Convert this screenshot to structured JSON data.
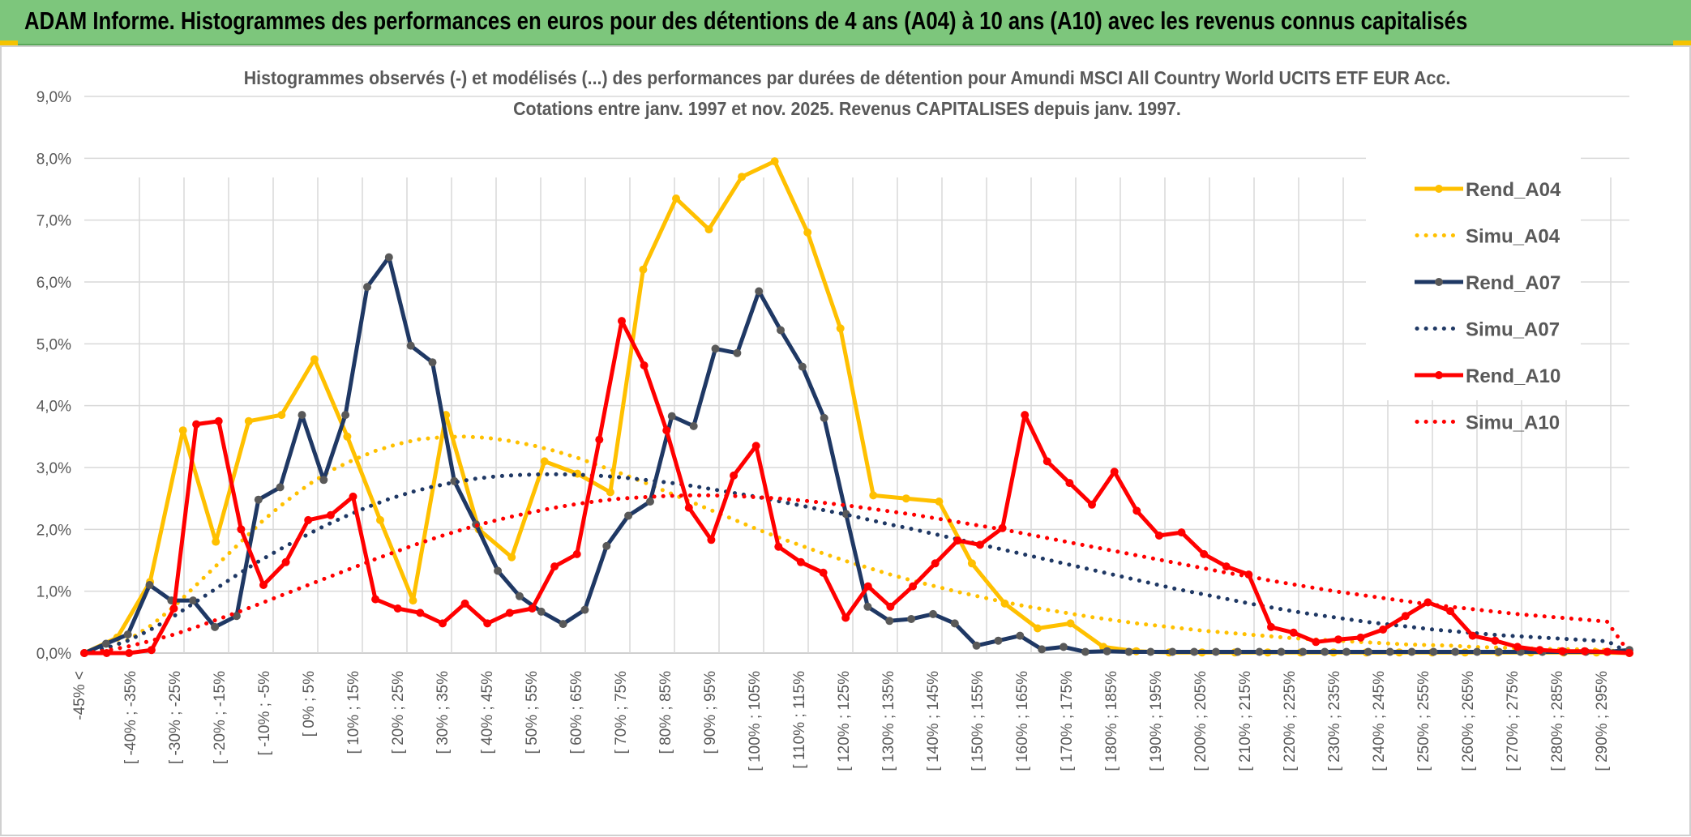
{
  "banner": {
    "title": "ADAM Informe. Histogrammes des performances en euros pour des détentions de 4 ans (A04) à 10 ans (A10) avec les revenus connus capitalisés"
  },
  "colors": {
    "banner_bg": "#7dc67c",
    "A04": "#ffc000",
    "A07": "#1f3864",
    "A10": "#ff0000",
    "grid": "#d9d9d9"
  },
  "chart_data": {
    "type": "line",
    "title": "Histogrammes observés (-) et modélisés (...) des performances par durées de détention pour Amundi MSCI All Country World UCITS ETF EUR Acc.",
    "subtitle": "Cotations entre janv. 1997 et nov. 2025. Revenus CAPITALISES depuis janv. 1997.",
    "ylim": [
      0,
      9
    ],
    "yticks": [
      "0,0%",
      "1,0%",
      "2,0%",
      "3,0%",
      "4,0%",
      "5,0%",
      "6,0%",
      "7,0%",
      "8,0%",
      "9,0%"
    ],
    "grid": true,
    "legend_position": "right",
    "x_labels": [
      "-45% <",
      "[ -40% ; -35%",
      "[ -30% ; -25%",
      "[ -20% ; -15%",
      "[ -10% ; -5%",
      "[ 0% ; 5%",
      "[ 10% ; 15%",
      "[ 20% ; 25%",
      "[ 30% ; 35%",
      "[ 40% ; 45%",
      "[ 50% ; 55%",
      "[ 60% ; 65%",
      "[ 70% ; 75%",
      "[ 80% ; 85%",
      "[ 90% ; 95%",
      "[ 100% ; 105%",
      "[ 110% ; 115%",
      "[ 120% ; 125%",
      "[ 130% ; 135%",
      "[ 140% ; 145%",
      "[ 150% ; 155%",
      "[ 160% ; 165%",
      "[ 170% ; 175%",
      "[ 180% ; 185%",
      "[ 190% ; 195%",
      "[ 200% ; 205%",
      "[ 210% ; 215%",
      "[ 220% ; 225%",
      "[ 230% ; 235%",
      "[ 240% ; 245%",
      "[ 250% ; 255%",
      "[ 260% ; 265%",
      "[ 270% ; 275%",
      "[ 280% ; 285%",
      "[ 290% ; 295%"
    ],
    "series": [
      {
        "name": "Rend_A04",
        "key": "A04",
        "style": "solid",
        "values": [
          0.0,
          0.25,
          1.15,
          3.6,
          1.8,
          3.75,
          3.85,
          4.75,
          3.5,
          2.15,
          0.85,
          3.85,
          2.0,
          1.55,
          3.1,
          2.9,
          2.6,
          6.2,
          7.35,
          6.85,
          7.7,
          7.95,
          6.8,
          5.25,
          2.55,
          2.5,
          2.45,
          1.45,
          0.8,
          0.4,
          0.48,
          0.1,
          0.03,
          0.01,
          0.01,
          0.01,
          0.01,
          0.01,
          0.01,
          0.01,
          0.01,
          0.01,
          0.01,
          0.01,
          0.01,
          0.01,
          0.01,
          0.0
        ]
      },
      {
        "name": "Simu_A04",
        "key": "A04",
        "style": "dotted",
        "values": [
          0.0,
          0.07,
          0.22,
          0.45,
          0.75,
          1.1,
          1.45,
          1.8,
          2.15,
          2.45,
          2.72,
          2.95,
          3.12,
          3.27,
          3.38,
          3.46,
          3.49,
          3.5,
          3.48,
          3.43,
          3.36,
          3.27,
          3.16,
          3.03,
          2.9,
          2.76,
          2.61,
          2.46,
          2.31,
          2.16,
          2.01,
          1.87,
          1.74,
          1.61,
          1.49,
          1.38,
          1.27,
          1.17,
          1.08,
          0.99,
          0.91,
          0.83,
          0.76,
          0.7,
          0.64,
          0.58,
          0.53,
          0.48,
          0.44,
          0.4,
          0.36,
          0.33,
          0.3,
          0.27,
          0.24,
          0.22,
          0.2,
          0.18,
          0.16,
          0.14,
          0.13,
          0.12,
          0.1,
          0.09,
          0.08,
          0.07,
          0.06,
          0.06,
          0.05,
          0.0
        ]
      },
      {
        "name": "Rend_A07",
        "key": "A07",
        "style": "solid",
        "values": [
          0.0,
          0.15,
          0.3,
          1.1,
          0.85,
          0.85,
          0.42,
          0.6,
          2.48,
          2.68,
          3.85,
          2.8,
          3.85,
          5.92,
          6.4,
          4.97,
          4.7,
          2.78,
          2.08,
          1.33,
          0.92,
          0.67,
          0.47,
          0.7,
          1.73,
          2.22,
          2.45,
          3.83,
          3.67,
          4.92,
          4.85,
          5.85,
          5.22,
          4.63,
          3.8,
          2.25,
          0.75,
          0.52,
          0.55,
          0.63,
          0.48,
          0.12,
          0.2,
          0.28,
          0.06,
          0.1,
          0.02,
          0.03,
          0.02,
          0.02,
          0.02,
          0.02,
          0.02,
          0.02,
          0.02,
          0.02,
          0.02,
          0.02,
          0.02,
          0.02,
          0.02,
          0.02,
          0.02,
          0.02,
          0.02,
          0.02,
          0.02,
          0.02,
          0.02,
          0.02,
          0.02,
          0.05
        ]
      },
      {
        "name": "Simu_A07",
        "key": "A07",
        "style": "dotted",
        "values": [
          0.0,
          0.08,
          0.2,
          0.37,
          0.57,
          0.8,
          1.03,
          1.26,
          1.48,
          1.68,
          1.87,
          2.05,
          2.21,
          2.36,
          2.49,
          2.6,
          2.69,
          2.76,
          2.82,
          2.86,
          2.88,
          2.89,
          2.89,
          2.88,
          2.86,
          2.83,
          2.79,
          2.75,
          2.7,
          2.64,
          2.58,
          2.52,
          2.45,
          2.38,
          2.31,
          2.24,
          2.16,
          2.08,
          2.01,
          1.93,
          1.85,
          1.77,
          1.69,
          1.61,
          1.53,
          1.45,
          1.37,
          1.29,
          1.21,
          1.13,
          1.05,
          0.98,
          0.91,
          0.84,
          0.77,
          0.71,
          0.65,
          0.6,
          0.55,
          0.5,
          0.46,
          0.42,
          0.38,
          0.35,
          0.32,
          0.29,
          0.27,
          0.25,
          0.23,
          0.21,
          0.19,
          0.0
        ]
      },
      {
        "name": "Rend_A10",
        "key": "A10",
        "style": "solid",
        "values": [
          0.0,
          0.0,
          0.0,
          0.05,
          0.72,
          3.7,
          3.75,
          2.0,
          1.1,
          1.47,
          2.15,
          2.23,
          2.53,
          0.87,
          0.72,
          0.65,
          0.48,
          0.8,
          0.48,
          0.65,
          0.72,
          1.4,
          1.6,
          3.45,
          5.37,
          4.65,
          3.6,
          2.35,
          1.83,
          2.87,
          3.35,
          1.72,
          1.47,
          1.3,
          0.57,
          1.08,
          0.75,
          1.08,
          1.45,
          1.82,
          1.75,
          2.02,
          3.85,
          3.1,
          2.75,
          2.4,
          2.93,
          2.3,
          1.9,
          1.95,
          1.6,
          1.4,
          1.27,
          0.42,
          0.33,
          0.18,
          0.22,
          0.25,
          0.38,
          0.6,
          0.82,
          0.68,
          0.28,
          0.2,
          0.1,
          0.05,
          0.03,
          0.03,
          0.02,
          0.0
        ]
      },
      {
        "name": "Simu_A10",
        "key": "A10",
        "style": "dotted",
        "values": [
          0.0,
          0.04,
          0.11,
          0.2,
          0.3,
          0.42,
          0.55,
          0.68,
          0.82,
          0.96,
          1.1,
          1.24,
          1.38,
          1.52,
          1.65,
          1.78,
          1.9,
          2.01,
          2.11,
          2.2,
          2.28,
          2.35,
          2.41,
          2.46,
          2.5,
          2.52,
          2.54,
          2.55,
          2.55,
          2.54,
          2.52,
          2.5,
          2.47,
          2.43,
          2.39,
          2.34,
          2.29,
          2.24,
          2.18,
          2.12,
          2.06,
          2.0,
          1.93,
          1.86,
          1.79,
          1.72,
          1.65,
          1.58,
          1.51,
          1.44,
          1.37,
          1.3,
          1.24,
          1.17,
          1.11,
          1.05,
          0.99,
          0.94,
          0.89,
          0.84,
          0.79,
          0.75,
          0.71,
          0.67,
          0.63,
          0.6,
          0.57,
          0.54,
          0.51,
          0.0
        ]
      }
    ]
  }
}
